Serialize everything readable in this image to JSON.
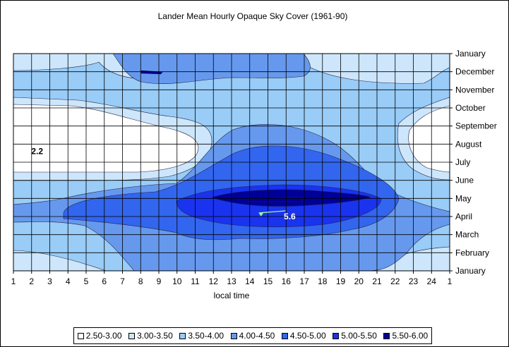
{
  "chart_data": {
    "type": "heatmap",
    "title": "Lander Mean Hourly Opaque Sky Cover (1961-90)",
    "xlabel": "local time",
    "ylabel": "",
    "x_ticks": [
      "1",
      "2",
      "3",
      "4",
      "5",
      "6",
      "7",
      "8",
      "9",
      "10",
      "11",
      "12",
      "13",
      "14",
      "15",
      "16",
      "17",
      "18",
      "19",
      "20",
      "21",
      "22",
      "23",
      "24",
      "1"
    ],
    "y_ticks": [
      "January",
      "February",
      "March",
      "April",
      "May",
      "June",
      "July",
      "August",
      "September",
      "October",
      "November",
      "December",
      "January"
    ],
    "legend_placement": "bottom",
    "grid": true,
    "levels": [
      {
        "label": "2.50-3.00",
        "color": "#ffffff"
      },
      {
        "label": "3.00-3.50",
        "color": "#cde6fb"
      },
      {
        "label": "3.50-4.00",
        "color": "#99ccf7"
      },
      {
        "label": "4.00-4.50",
        "color": "#6699ee"
      },
      {
        "label": "4.50-5.00",
        "color": "#3366ee"
      },
      {
        "label": "5.00-5.50",
        "color": "#1a33ee"
      },
      {
        "label": "5.50-6.00",
        "color": "#000099"
      }
    ],
    "annotations": [
      {
        "text": "2.2",
        "hour": 2,
        "month": 7.6
      },
      {
        "text": "5.6",
        "hour": 16.2,
        "month": 4.0,
        "arrow_to": {
          "hour": 14.5,
          "month": 4.2
        }
      }
    ]
  }
}
